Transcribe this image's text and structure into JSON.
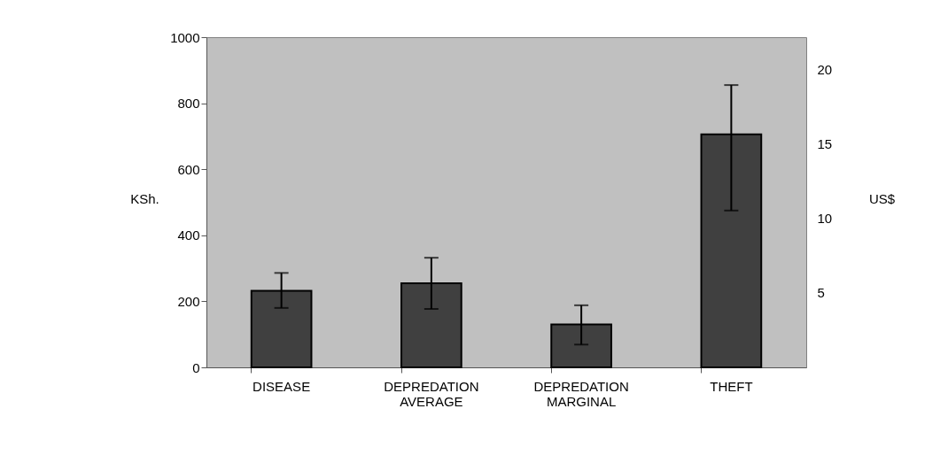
{
  "chart_data": {
    "type": "bar",
    "categories": [
      "DISEASE",
      "DEPREDATION AVERAGE",
      "DEPREDATION MARGINAL",
      "THEFT"
    ],
    "values": [
      232,
      255,
      130,
      706
    ],
    "errors": [
      [
        180,
        286
      ],
      [
        177,
        332
      ],
      [
        69,
        188
      ],
      [
        475,
        855
      ]
    ],
    "color": "#404040",
    "ylabel": "KSh.",
    "y2label": "US$",
    "ylim": [
      0,
      1000
    ],
    "yticks": [
      0,
      200,
      400,
      600,
      800,
      1000
    ],
    "y2lim": [
      0,
      22.2
    ],
    "y2ticks": [
      5,
      10,
      15,
      20
    ],
    "grid": false
  }
}
